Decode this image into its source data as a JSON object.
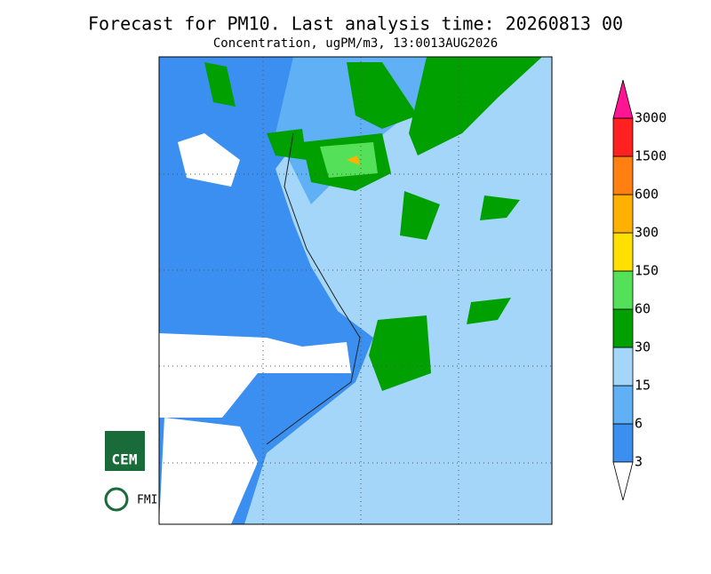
{
  "header": {
    "title": "Forecast for PM10. Last analysis time: 20260813 00",
    "subtitle": "Concentration, ugPM/m3, 13:0013AUG2026"
  },
  "legend": {
    "levels": [
      3,
      6,
      15,
      30,
      60,
      150,
      300,
      600,
      1500,
      3000
    ],
    "colors": [
      "#3b8ff0",
      "#5fb0f5",
      "#a4d6fa",
      "#00a000",
      "#55e05a",
      "#ffe000",
      "#ffb000",
      "#ff8010",
      "#ff2020"
    ],
    "under_color": "#ffffff",
    "over_color": "#ff1493"
  },
  "logos": {
    "cem": "CEM",
    "fmi": "FMI"
  }
}
